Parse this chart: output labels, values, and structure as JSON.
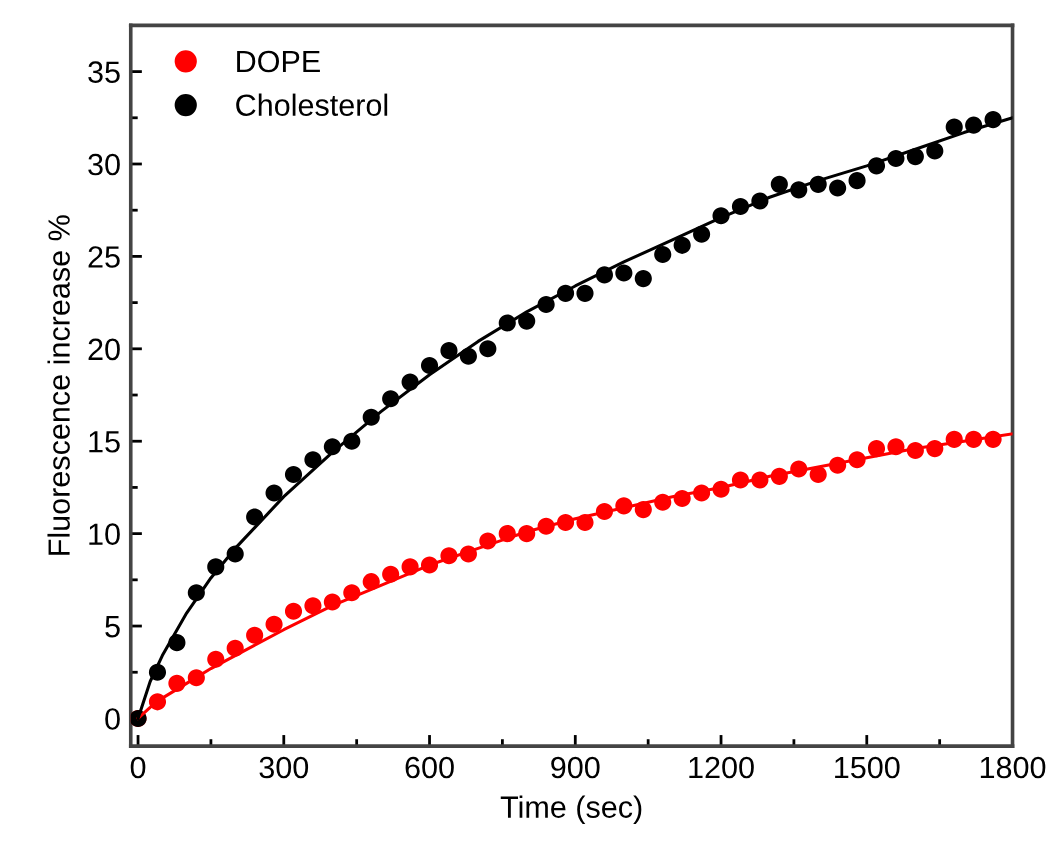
{
  "chart_data": {
    "type": "scatter",
    "xlabel": "Time (sec)",
    "ylabel": "Fluorescence increase %",
    "xlim": [
      -15,
      1800
    ],
    "ylim": [
      -1.5,
      37.5
    ],
    "xticks": [
      0,
      {
        "value": 150,
        "label": null
      },
      300,
      {
        "value": 450,
        "label": null
      },
      600,
      {
        "value": 750,
        "label": null
      },
      900,
      {
        "value": 1050,
        "label": null
      },
      1200,
      {
        "value": 1350,
        "label": null
      },
      1500,
      {
        "value": 1650,
        "label": null
      },
      1800
    ],
    "yticks": [
      0,
      {
        "value": 2.5,
        "label": null
      },
      5,
      {
        "value": 7.5,
        "label": null
      },
      10,
      {
        "value": 12.5,
        "label": null
      },
      15,
      {
        "value": 17.5,
        "label": null
      },
      20,
      {
        "value": 22.5,
        "label": null
      },
      25,
      {
        "value": 27.5,
        "label": null
      },
      30,
      {
        "value": 32.5,
        "label": null
      },
      35
    ],
    "grid": false,
    "legend": "top left",
    "marker": "circle",
    "series": [
      {
        "name": "DOPE",
        "color": "#ff0000",
        "x": [
          0,
          40,
          80,
          120,
          160,
          200,
          240,
          280,
          320,
          360,
          400,
          440,
          480,
          520,
          560,
          600,
          640,
          680,
          720,
          760,
          800,
          840,
          880,
          920,
          960,
          1000,
          1040,
          1080,
          1120,
          1160,
          1200,
          1240,
          1280,
          1320,
          1360,
          1400,
          1440,
          1480,
          1520,
          1560,
          1600,
          1640,
          1680,
          1720,
          1760
        ],
        "values": [
          0,
          0.9,
          1.9,
          2.2,
          3.2,
          3.8,
          4.5,
          5.1,
          5.8,
          6.1,
          6.3,
          6.8,
          7.4,
          7.8,
          8.2,
          8.3,
          8.8,
          8.9,
          9.6,
          10.0,
          10.0,
          10.4,
          10.6,
          10.6,
          11.2,
          11.5,
          11.3,
          11.7,
          11.9,
          12.2,
          12.4,
          12.9,
          12.9,
          13.1,
          13.5,
          13.2,
          13.7,
          14.0,
          14.6,
          14.7,
          14.5,
          14.6,
          15.1,
          15.1,
          15.1
        ]
      },
      {
        "name": "Cholesterol",
        "color": "#000000",
        "x": [
          0,
          40,
          80,
          120,
          160,
          200,
          240,
          280,
          320,
          360,
          400,
          440,
          480,
          520,
          560,
          600,
          640,
          680,
          720,
          760,
          800,
          840,
          880,
          920,
          960,
          1000,
          1040,
          1080,
          1120,
          1160,
          1200,
          1240,
          1280,
          1320,
          1360,
          1400,
          1440,
          1480,
          1520,
          1560,
          1600,
          1640,
          1680,
          1720,
          1760
        ],
        "values": [
          0,
          2.5,
          4.1,
          6.8,
          8.2,
          8.9,
          10.9,
          12.2,
          13.2,
          14.0,
          14.7,
          15.0,
          16.3,
          17.3,
          18.2,
          19.1,
          19.9,
          19.6,
          20.0,
          21.4,
          21.5,
          22.4,
          23.0,
          23.0,
          24.0,
          24.1,
          23.8,
          25.1,
          25.6,
          26.2,
          27.2,
          27.7,
          28.0,
          28.9,
          28.6,
          28.9,
          28.7,
          29.1,
          29.9,
          30.3,
          30.4,
          30.7,
          32.0,
          32.1,
          32.4
        ]
      },
      {
        "type": "line",
        "color": "#ff0000",
        "marker": "none",
        "x": [
          0,
          25,
          50,
          100,
          150,
          200,
          300,
          400,
          500,
          600,
          700,
          800,
          900,
          1000,
          1100,
          1200,
          1300,
          1400,
          1500,
          1600,
          1700,
          1800
        ],
        "values": [
          0,
          0.6,
          1.1,
          1.9,
          2.7,
          3.4,
          4.8,
          6.1,
          7.2,
          8.3,
          9.2,
          10.1,
          10.8,
          11.4,
          12.0,
          12.5,
          13.1,
          13.6,
          14.1,
          14.6,
          15.0,
          15.4
        ]
      },
      {
        "type": "line",
        "color": "#000000",
        "marker": "none",
        "x": [
          0,
          25,
          50,
          100,
          150,
          200,
          300,
          400,
          500,
          600,
          700,
          800,
          900,
          1000,
          1100,
          1200,
          1300,
          1400,
          1500,
          1600,
          1700,
          1800
        ],
        "values": [
          0,
          2.0,
          3.4,
          5.7,
          7.6,
          9.2,
          12.0,
          14.4,
          16.6,
          18.6,
          20.4,
          22.0,
          23.4,
          24.7,
          25.9,
          27.1,
          28.2,
          29.1,
          29.9,
          30.8,
          31.7,
          32.5
        ]
      }
    ]
  }
}
